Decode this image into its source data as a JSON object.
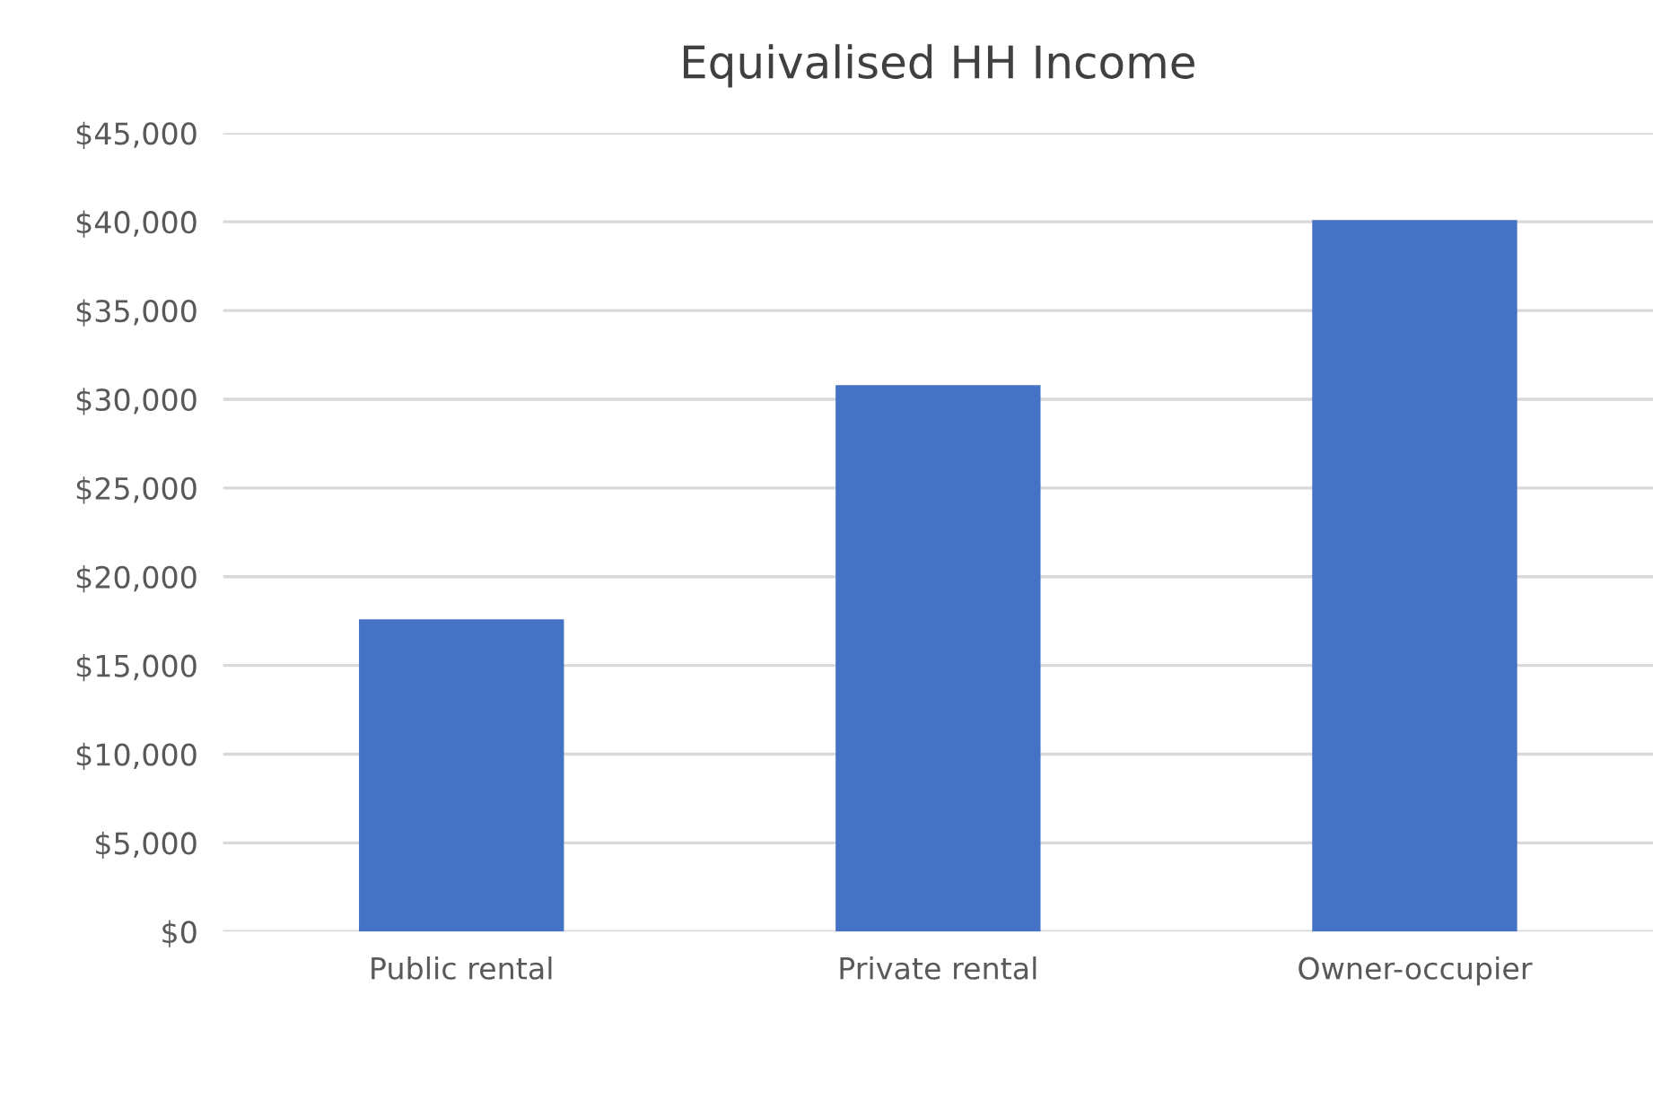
{
  "chart_data": {
    "type": "bar",
    "title": "Equivalised HH Income",
    "categories": [
      "Public rental",
      "Private rental",
      "Owner-occupier"
    ],
    "values": [
      17600,
      30800,
      40100
    ],
    "color": "#4472c4",
    "ylim": [
      0,
      45000
    ],
    "yticks": [
      {
        "value": 0,
        "label": "$0"
      },
      {
        "value": 5000,
        "label": "$5,000"
      },
      {
        "value": 10000,
        "label": "$10,000"
      },
      {
        "value": 15000,
        "label": "$15,000"
      },
      {
        "value": 20000,
        "label": "$20,000"
      },
      {
        "value": 25000,
        "label": "$25,000"
      },
      {
        "value": 30000,
        "label": "$30,000"
      },
      {
        "value": 35000,
        "label": "$35,000"
      },
      {
        "value": 40000,
        "label": "$40,000"
      },
      {
        "value": 45000,
        "label": "$45,000"
      }
    ],
    "grid": "y",
    "legend": false
  }
}
